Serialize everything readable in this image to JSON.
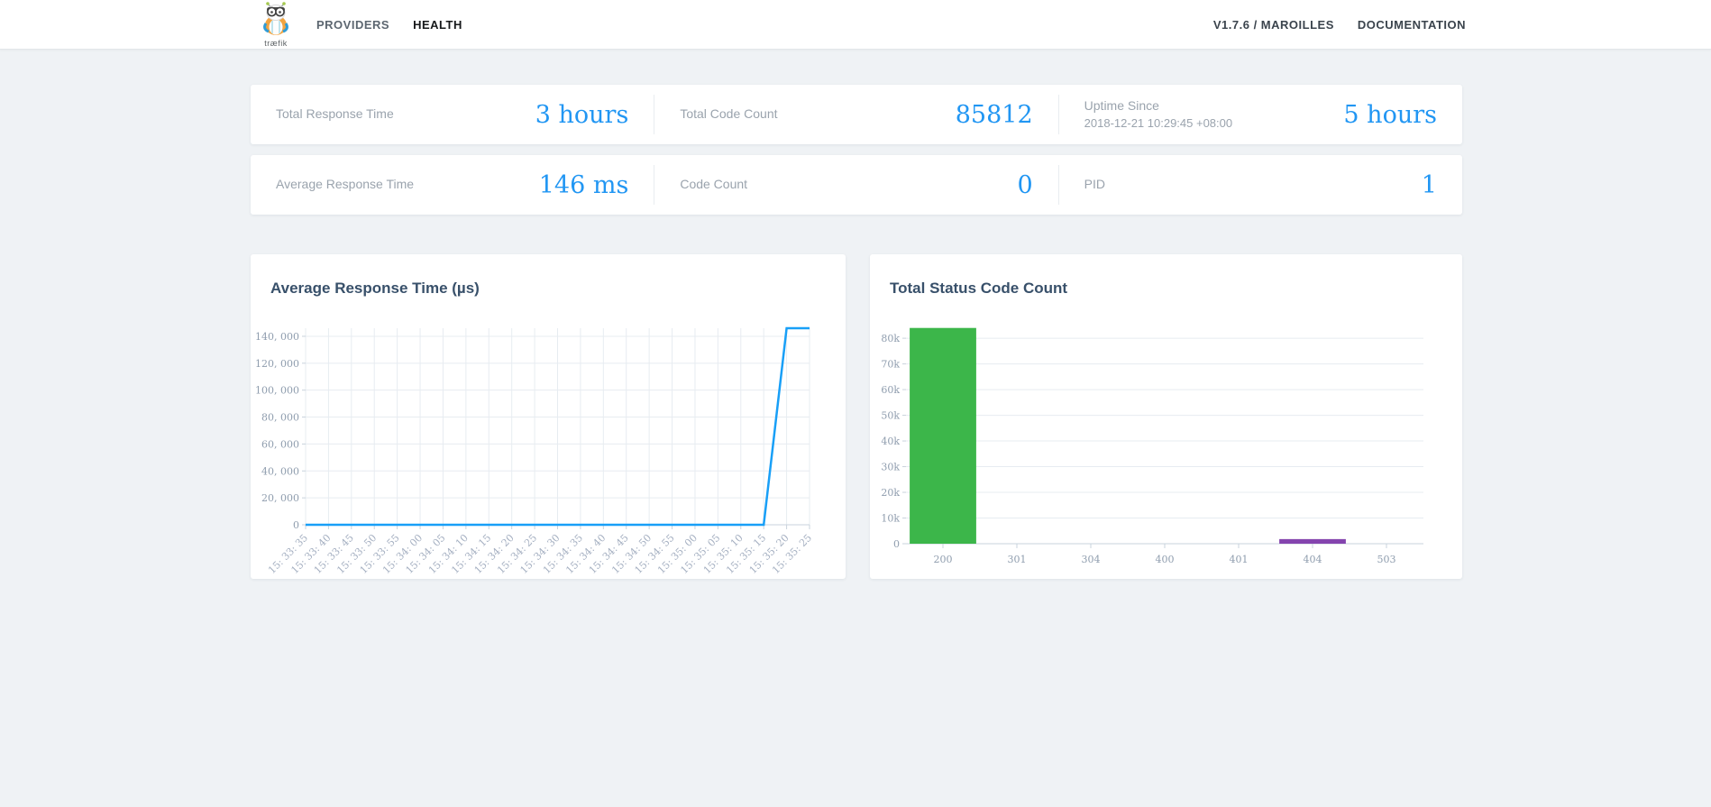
{
  "nav": {
    "brand": "træfik",
    "items": [
      {
        "label": "PROVIDERS",
        "active": false
      },
      {
        "label": "HEALTH",
        "active": true
      }
    ],
    "right_items": [
      {
        "label": "V1.7.6 / MAROILLES"
      },
      {
        "label": "DOCUMENTATION"
      }
    ]
  },
  "stats": {
    "rows": [
      [
        {
          "label": "Total Response Time",
          "value": "3 hours"
        },
        {
          "label": "Total Code Count",
          "value": "85812"
        },
        {
          "label": "Uptime Since",
          "sublabel": "2018-12-21 10:29:45 +08:00",
          "value": "5 hours"
        }
      ],
      [
        {
          "label": "Average Response Time",
          "value": "146 ms"
        },
        {
          "label": "Code Count",
          "value": "0"
        },
        {
          "label": "PID",
          "value": "1"
        }
      ]
    ]
  },
  "theme": {
    "accent_blue": "#2196f3",
    "line_blue": "#189ff7",
    "bar_green": "#3cb64a",
    "bar_purple": "#8444ae",
    "grid_color": "#e7ecf1",
    "axis_color": "#c9d3dc",
    "ytick_color": "#8f9dae",
    "xtick_color": "#a3aec0"
  },
  "chart_data": [
    {
      "type": "line",
      "title": "Average Response Time (µs)",
      "x": [
        "15: 33: 35",
        "15: 33: 40",
        "15: 33: 45",
        "15: 33: 50",
        "15: 33: 55",
        "15: 34: 00",
        "15: 34: 05",
        "15: 34: 10",
        "15: 34: 15",
        "15: 34: 20",
        "15: 34: 25",
        "15: 34: 30",
        "15: 34: 35",
        "15: 34: 40",
        "15: 34: 45",
        "15: 34: 50",
        "15: 34: 55",
        "15: 35: 00",
        "15: 35: 05",
        "15: 35: 10",
        "15: 35: 15",
        "15: 35: 20",
        "15: 35: 25"
      ],
      "values": [
        0,
        0,
        0,
        0,
        0,
        0,
        0,
        0,
        0,
        0,
        0,
        0,
        0,
        0,
        0,
        0,
        0,
        0,
        0,
        0,
        0,
        146000,
        146000
      ],
      "ylim": [
        0,
        146000
      ],
      "yticks": [
        0,
        20000,
        40000,
        60000,
        80000,
        100000,
        120000,
        140000
      ],
      "ytick_labels": [
        "0",
        "20, 000",
        "40, 000",
        "60, 000",
        "80, 000",
        "100, 000",
        "120, 000",
        "140, 000"
      ],
      "grid": "both",
      "legend": "none",
      "line_color": "#189ff7"
    },
    {
      "type": "bar",
      "title": "Total Status Code Count",
      "categories": [
        "200",
        "301",
        "304",
        "400",
        "401",
        "404",
        "503"
      ],
      "values": [
        84000,
        0,
        0,
        0,
        0,
        1800,
        0
      ],
      "total_visible_count": 85812,
      "colors": [
        "#3cb64a",
        null,
        null,
        null,
        null,
        "#8444ae",
        null
      ],
      "ylim": [
        0,
        84600
      ],
      "yticks": [
        0,
        10000,
        20000,
        30000,
        40000,
        50000,
        60000,
        70000,
        80000
      ],
      "ytick_labels": [
        "0",
        "10k",
        "20k",
        "30k",
        "40k",
        "50k",
        "60k",
        "70k",
        "80k"
      ],
      "grid": "horizontal",
      "legend": "none"
    }
  ]
}
